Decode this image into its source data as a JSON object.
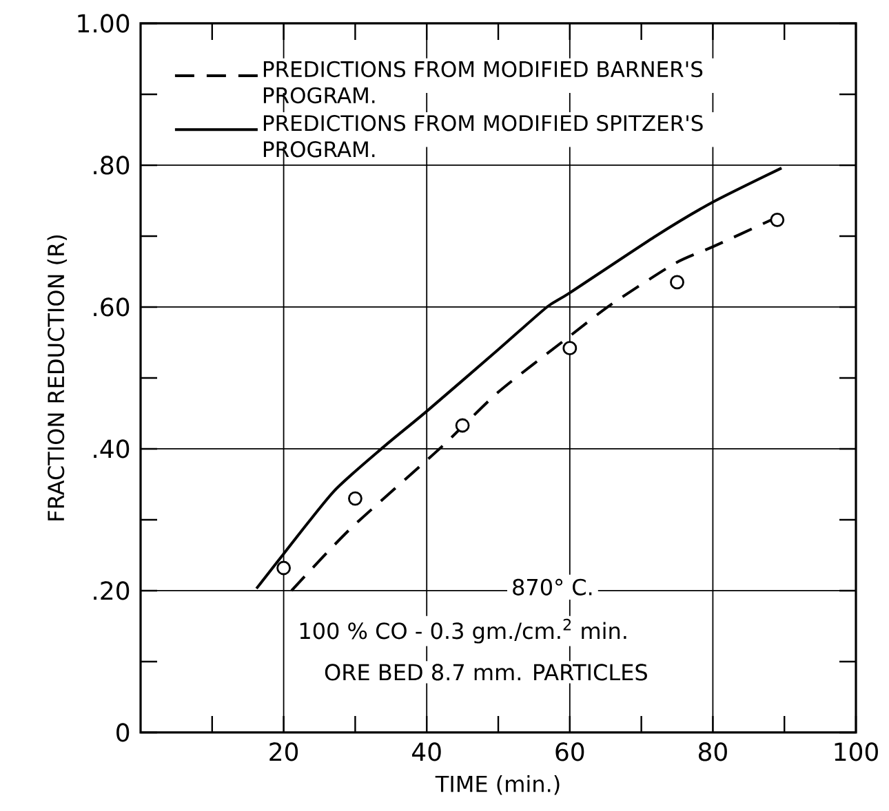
{
  "chart_data": {
    "type": "line",
    "xlabel": "TIME (min.)",
    "ylabel": "FRACTION REDUCTION (R)",
    "xlim": [
      0,
      100
    ],
    "ylim": [
      0,
      1
    ],
    "xticks": [
      {
        "value": 10,
        "label": null
      },
      20,
      {
        "value": 30,
        "label": null
      },
      40,
      {
        "value": 50,
        "label": null
      },
      60,
      {
        "value": 70,
        "label": null
      },
      80,
      {
        "value": 90,
        "label": null
      },
      100
    ],
    "yticks": [
      0,
      {
        "value": 0.1,
        "label": null
      },
      {
        "value": 0.2,
        "label": ".20"
      },
      {
        "value": 0.3,
        "label": null
      },
      {
        "value": 0.4,
        "label": ".40"
      },
      {
        "value": 0.5,
        "label": null
      },
      {
        "value": 0.6,
        "label": ".60"
      },
      {
        "value": 0.7,
        "label": null
      },
      {
        "value": 0.8,
        "label": ".80"
      },
      {
        "value": 0.9,
        "label": null
      },
      {
        "value": 1,
        "label": "1.00"
      }
    ],
    "grid": true,
    "legend": "top left",
    "annotations": [
      "870° C.",
      "100 % CO - 0.3 gm./cm.$^{2}$ min.",
      "ORE BED 8.7 mm. PARTICLES"
    ],
    "series": [
      {
        "name": "PREDICTIONS FROM MODIFIED BARNER'S PROGRAM.",
        "line_style": "dashed",
        "color": "#000000",
        "x": [
          21.1,
          29.3,
          42.1,
          50,
          60,
          65.7,
          74.6,
          80,
          88.2
        ],
        "values": [
          0.2,
          0.287,
          0.403,
          0.48,
          0.559,
          0.603,
          0.661,
          0.685,
          0.723
        ]
      },
      {
        "name": "PREDICTIONS FROM MODIFIED SPITZER'S PROGRAM.",
        "line_style": "solid",
        "color": "#000000",
        "x": [
          16.2,
          20,
          27,
          34,
          40,
          50,
          56.8,
          60,
          72,
          80,
          89.6
        ],
        "values": [
          0.203,
          0.252,
          0.34,
          0.403,
          0.453,
          0.54,
          0.6,
          0.62,
          0.7,
          0.748,
          0.796
        ]
      },
      {
        "type": "scatter",
        "marker": "circle",
        "color": "#000000",
        "x": [
          20,
          30,
          45,
          60,
          75,
          89
        ],
        "values": [
          0.232,
          0.33,
          0.433,
          0.542,
          0.635,
          0.723
        ]
      }
    ]
  }
}
